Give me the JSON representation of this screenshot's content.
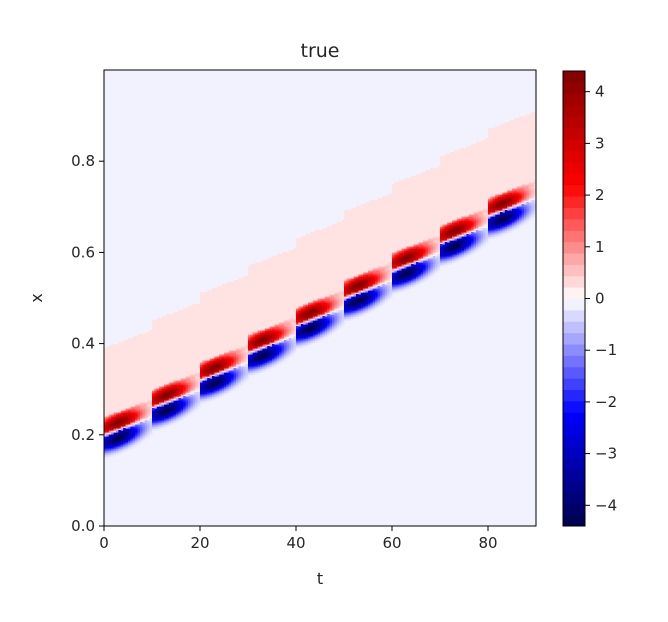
{
  "chart_data": {
    "type": "heatmap",
    "title": "true",
    "xlabel": "t",
    "ylabel": "x",
    "xlim": [
      0,
      90
    ],
    "ylim": [
      0,
      1
    ],
    "x_ticks": [
      "0",
      "20",
      "40",
      "60",
      "80"
    ],
    "y_ticks": [
      "0.0",
      "0.2",
      "0.4",
      "0.6",
      "0.8"
    ],
    "colorbar": {
      "colormap": "seismic",
      "range": [
        -4.4,
        4.4
      ],
      "ticks": [
        "4",
        "3",
        "2",
        "1",
        "0",
        "−1",
        "−2",
        "−3",
        "−4"
      ]
    },
    "background_color": "#f2f2ff",
    "field": {
      "description_units": "value at (t, x)",
      "wave_period_t": 10,
      "wave_start_x": 0.2,
      "wave_speed_x_per_t": 0.006,
      "peak": 4.4,
      "trough": -4.4,
      "band_halfwidth_x": 0.03,
      "tail_length_t": 10
    }
  }
}
